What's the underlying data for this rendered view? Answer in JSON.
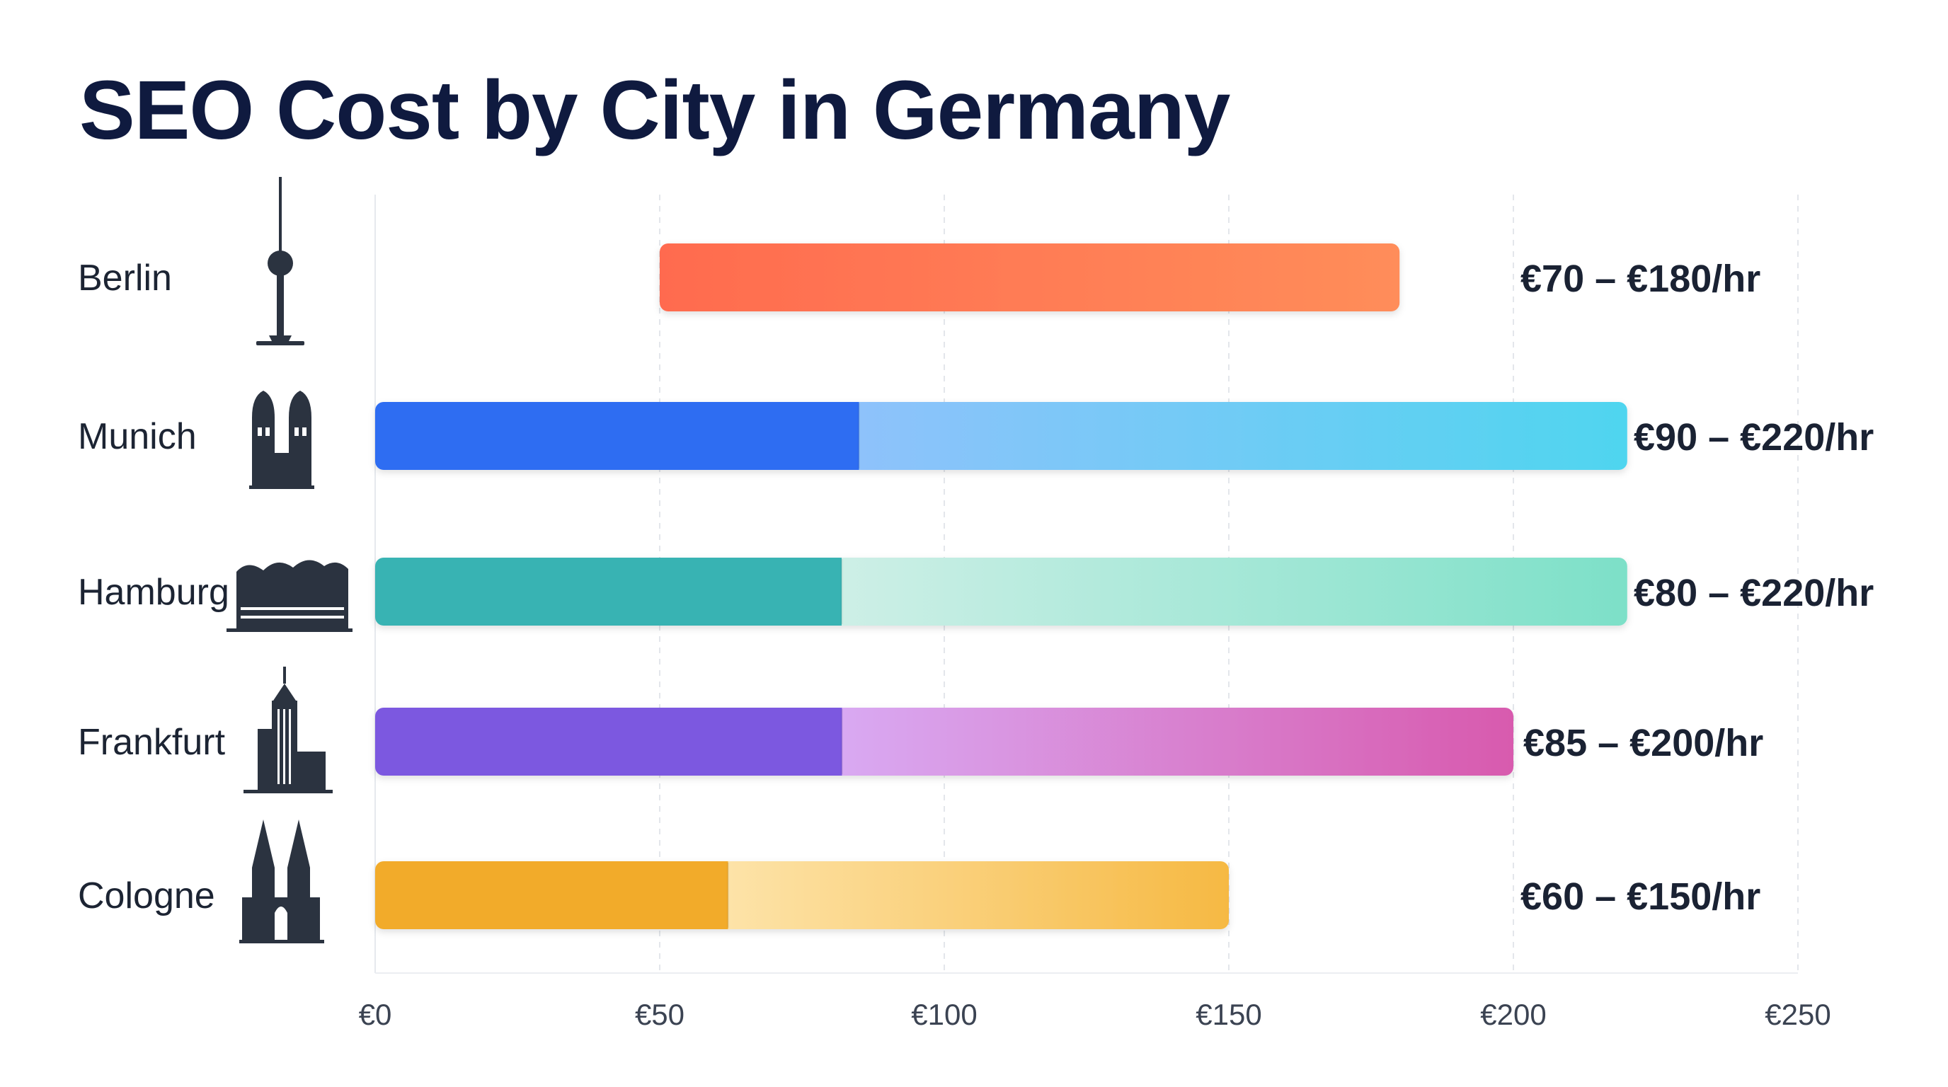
{
  "chart_data": {
    "type": "bar",
    "title": "SEO Cost by City in Germany",
    "xlabel": "",
    "ylabel": "",
    "xlim": [
      0,
      250
    ],
    "x_ticks": [
      "€0",
      "€50",
      "€100",
      "€150",
      "€200",
      "€250"
    ],
    "x_tick_values": [
      0,
      50,
      100,
      150,
      200,
      250
    ],
    "grid": true,
    "categories": [
      "Berlin",
      "Munich",
      "Hamburg",
      "Frankfurt",
      "Cologne"
    ],
    "series": [
      {
        "values": [
          [
            50,
            180
          ],
          [
            0,
            220
          ],
          [
            0,
            220
          ],
          [
            0,
            200
          ],
          [
            0,
            150
          ]
        ]
      }
    ],
    "highlight_end": [
      null,
      85,
      82,
      82,
      62
    ],
    "range_labels": [
      "€70 – €180/hr",
      "€90 – €220/hr",
      "€80 – €220/hr",
      "€85 – €200/hr",
      "€60 – €150/hr"
    ],
    "icons": [
      "tv-tower-icon",
      "church-towers-icon",
      "concert-hall-icon",
      "skyscraper-icon",
      "cathedral-icon"
    ],
    "colors": {
      "Berlin": [
        "#ff6b4f",
        "#ff8d5a"
      ],
      "Munich": [
        "#2f6df2",
        "#8ec2fb",
        "#4fd5ef"
      ],
      "Hamburg": [
        "#38b3b3",
        "#cdefe6",
        "#7de0c8"
      ],
      "Frankfurt": [
        "#7c58e0",
        "#d9a9f2",
        "#d85aae"
      ],
      "Cologne": [
        "#f2ab2c",
        "#fde3a8",
        "#f6b943"
      ]
    }
  }
}
